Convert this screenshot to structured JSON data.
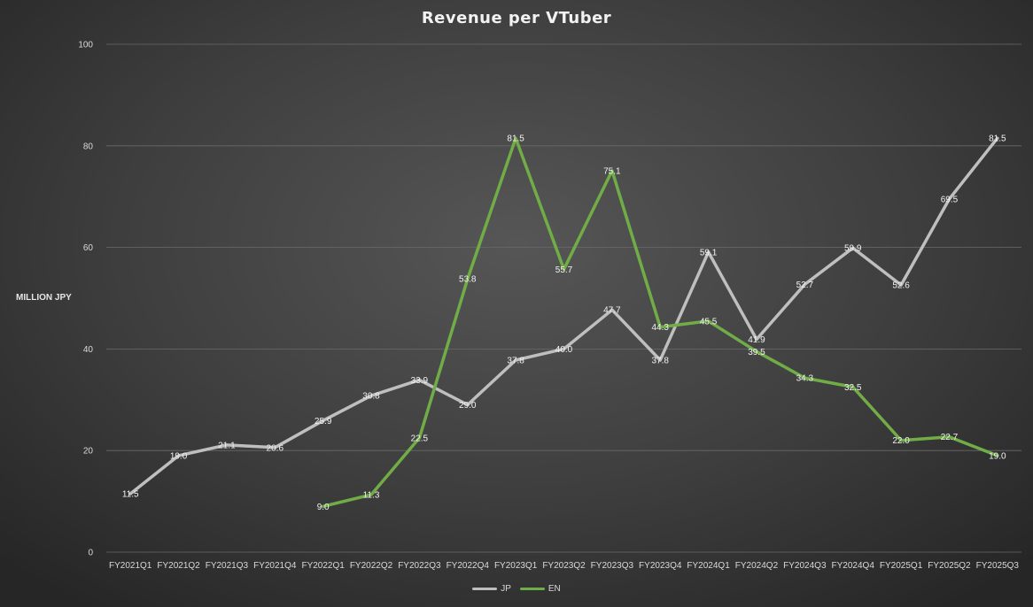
{
  "chart_data": {
    "type": "line",
    "title": "Revenue per VTuber",
    "ylabel": "MILLION JPY",
    "xlabel": "",
    "ylim": [
      0,
      100
    ],
    "yticks": [
      0,
      20,
      40,
      60,
      80,
      100
    ],
    "grid": true,
    "legend_position": "bottom",
    "categories": [
      "FY2021Q1",
      "FY2021Q2",
      "FY2021Q3",
      "FY2021Q4",
      "FY2022Q1",
      "FY2022Q2",
      "FY2022Q3",
      "FY2022Q4",
      "FY2023Q1",
      "FY2023Q2",
      "FY2023Q3",
      "FY2023Q4",
      "FY2024Q1",
      "FY2024Q2",
      "FY2024Q3",
      "FY2024Q4",
      "FY2025Q1",
      "FY2025Q2",
      "FY2025Q3"
    ],
    "series": [
      {
        "name": "JP",
        "color": "#bfbfbf",
        "values": [
          11.5,
          19.0,
          21.1,
          20.6,
          25.9,
          30.8,
          33.9,
          29.0,
          37.8,
          40.0,
          47.7,
          37.8,
          59.1,
          41.9,
          52.7,
          59.9,
          52.6,
          69.5,
          81.5
        ],
        "labels": [
          "11.5",
          "19.0",
          "21.1",
          "20.6",
          "25.9",
          "30.8",
          "33.9",
          "29.0",
          "37.8",
          "40.0",
          "47.7",
          "37.8",
          "59.1",
          "41.9",
          "52.7",
          "59.9",
          "52.6",
          "69.5",
          "81.5"
        ]
      },
      {
        "name": "EN",
        "color": "#70ad47",
        "values": [
          null,
          null,
          null,
          null,
          9.0,
          11.3,
          22.5,
          53.8,
          81.5,
          55.7,
          75.1,
          44.3,
          45.5,
          39.5,
          34.3,
          32.5,
          22.0,
          22.7,
          19.0
        ],
        "labels": [
          null,
          null,
          null,
          null,
          "9.0",
          "11.3",
          "22.5",
          "53.8",
          "81.5",
          "55.7",
          "75.1",
          "44.3",
          "45.5",
          "39.5",
          "34.3",
          "32.5",
          "22.0",
          "22.7",
          "19.0"
        ]
      }
    ]
  }
}
